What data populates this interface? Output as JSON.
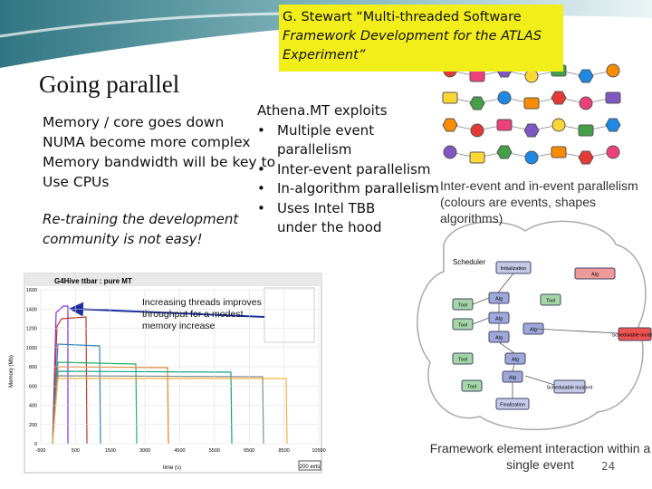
{
  "header": {
    "title": "Going parallel",
    "citation": [
      "G. Stewart  “Multi-threaded Software",
      "Framework Development for the ATLAS",
      "Experiment”"
    ]
  },
  "left": {
    "lines": [
      "Memory / core goes down",
      "NUMA become more complex",
      "Memory bandwidth will be key to",
      "Use CPUs"
    ],
    "note": [
      "Re-training the development",
      "community is not easy!"
    ]
  },
  "athena": {
    "heading": "Athena.MT exploits",
    "bullets": [
      "Multiple event parallelism",
      "Inter-event parallelism",
      "In-algorithm parallelism",
      "Uses Intel TBB under the hood"
    ]
  },
  "throughput_plot": {
    "title": "G4Hive ttbar : pure MT",
    "y_label": "Memory (Mb)",
    "x_label": "time (s)",
    "yticks": [
      0,
      200,
      400,
      600,
      800,
      1000,
      1200,
      1400,
      1600
    ],
    "xticks": [
      -500,
      500,
      1500,
      3000,
      4500,
      5500,
      6500,
      8500,
      10500
    ],
    "badge": "200 evts",
    "annotation": "Increasing threads improves throughput for a modest memory increase"
  },
  "event_diagram": {
    "caption": [
      "Inter-event and in-event parallelism",
      "(colours are events, shapes algorithms)"
    ]
  },
  "scheduler_diagram": {
    "labels": [
      "Scheduler",
      "Initialization",
      "Tool",
      "Alg",
      "Finalization",
      "Schedulable incident"
    ],
    "caption": [
      "Framework element interaction within a",
      "single event"
    ]
  },
  "page_number": "24"
}
